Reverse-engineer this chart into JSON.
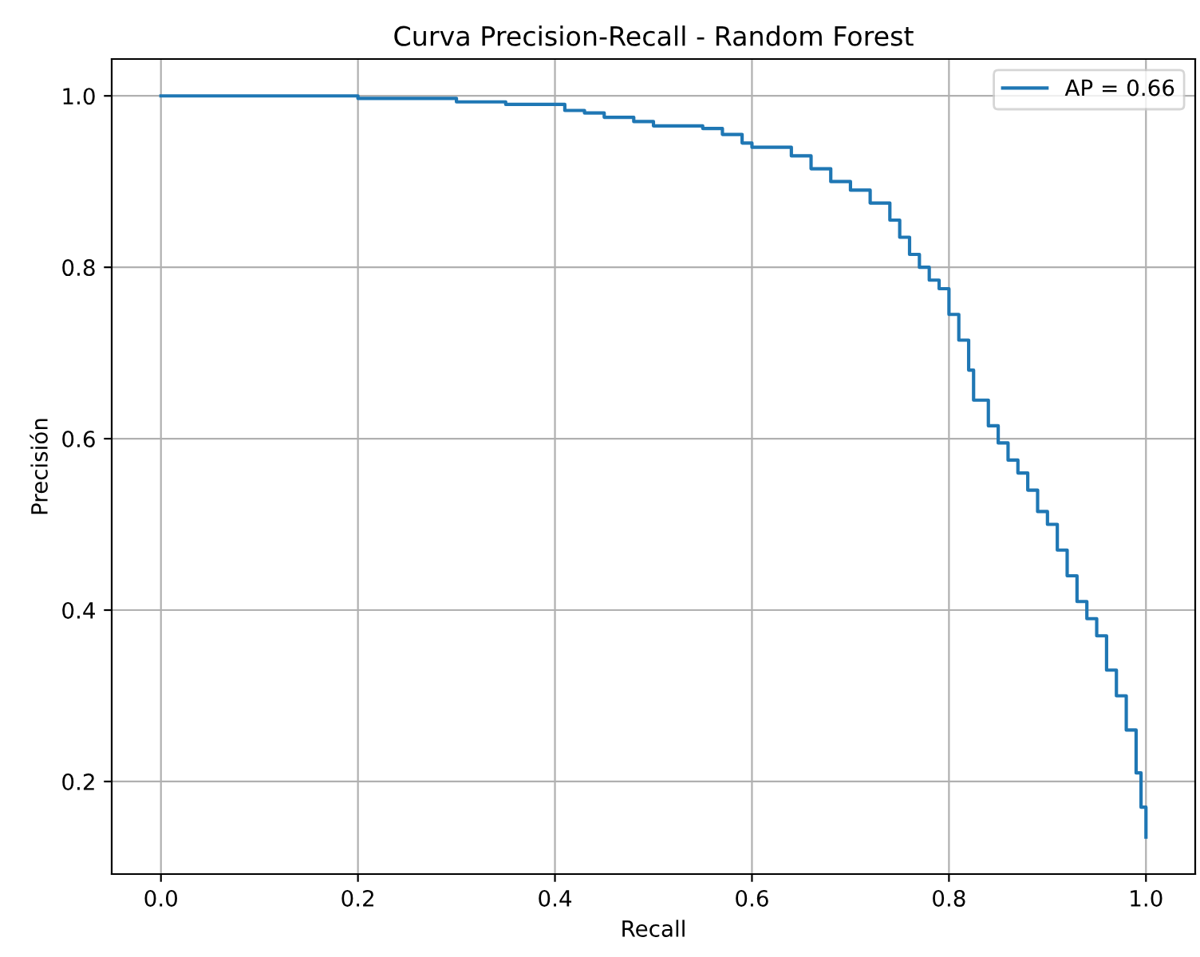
{
  "chart_data": {
    "type": "step",
    "title": "Curva Precision-Recall - Random Forest",
    "xlabel": "Recall",
    "ylabel": "Precisión",
    "series": [
      {
        "name": "AP = 0.66",
        "color": "#1f77b4",
        "x": [
          0,
          0.2,
          0.2,
          0.28,
          0.3,
          0.35,
          0.4,
          0.41,
          0.43,
          0.45,
          0.48,
          0.5,
          0.55,
          0.57,
          0.59,
          0.6,
          0.62,
          0.64,
          0.66,
          0.68,
          0.7,
          0.72,
          0.74,
          0.75,
          0.76,
          0.77,
          0.78,
          0.79,
          0.8,
          0.81,
          0.82,
          0.825,
          0.84,
          0.85,
          0.86,
          0.87,
          0.88,
          0.89,
          0.9,
          0.91,
          0.92,
          0.93,
          0.94,
          0.95,
          0.96,
          0.97,
          0.98,
          0.99,
          0.995,
          1.0
        ],
        "values": [
          1.0,
          1.0,
          0.997,
          0.997,
          0.993,
          0.99,
          0.99,
          0.983,
          0.98,
          0.975,
          0.97,
          0.965,
          0.962,
          0.955,
          0.945,
          0.94,
          0.94,
          0.93,
          0.915,
          0.9,
          0.89,
          0.875,
          0.855,
          0.835,
          0.815,
          0.8,
          0.785,
          0.775,
          0.745,
          0.715,
          0.68,
          0.645,
          0.615,
          0.595,
          0.575,
          0.56,
          0.54,
          0.515,
          0.5,
          0.47,
          0.44,
          0.41,
          0.39,
          0.37,
          0.33,
          0.3,
          0.26,
          0.21,
          0.17,
          0.135
        ]
      }
    ],
    "xlim": [
      -0.05,
      1.05
    ],
    "ylim": [
      0.092,
      1.043
    ],
    "xticks": [
      {
        "value": 0,
        "label": "0.0"
      },
      0.2,
      0.4,
      0.6,
      0.8,
      {
        "value": 1,
        "label": "1.0"
      }
    ],
    "yticks": [
      0.2,
      0.4,
      0.6,
      0.8,
      {
        "value": 1,
        "label": "1.0"
      }
    ],
    "grid": true,
    "legend": "top right"
  }
}
